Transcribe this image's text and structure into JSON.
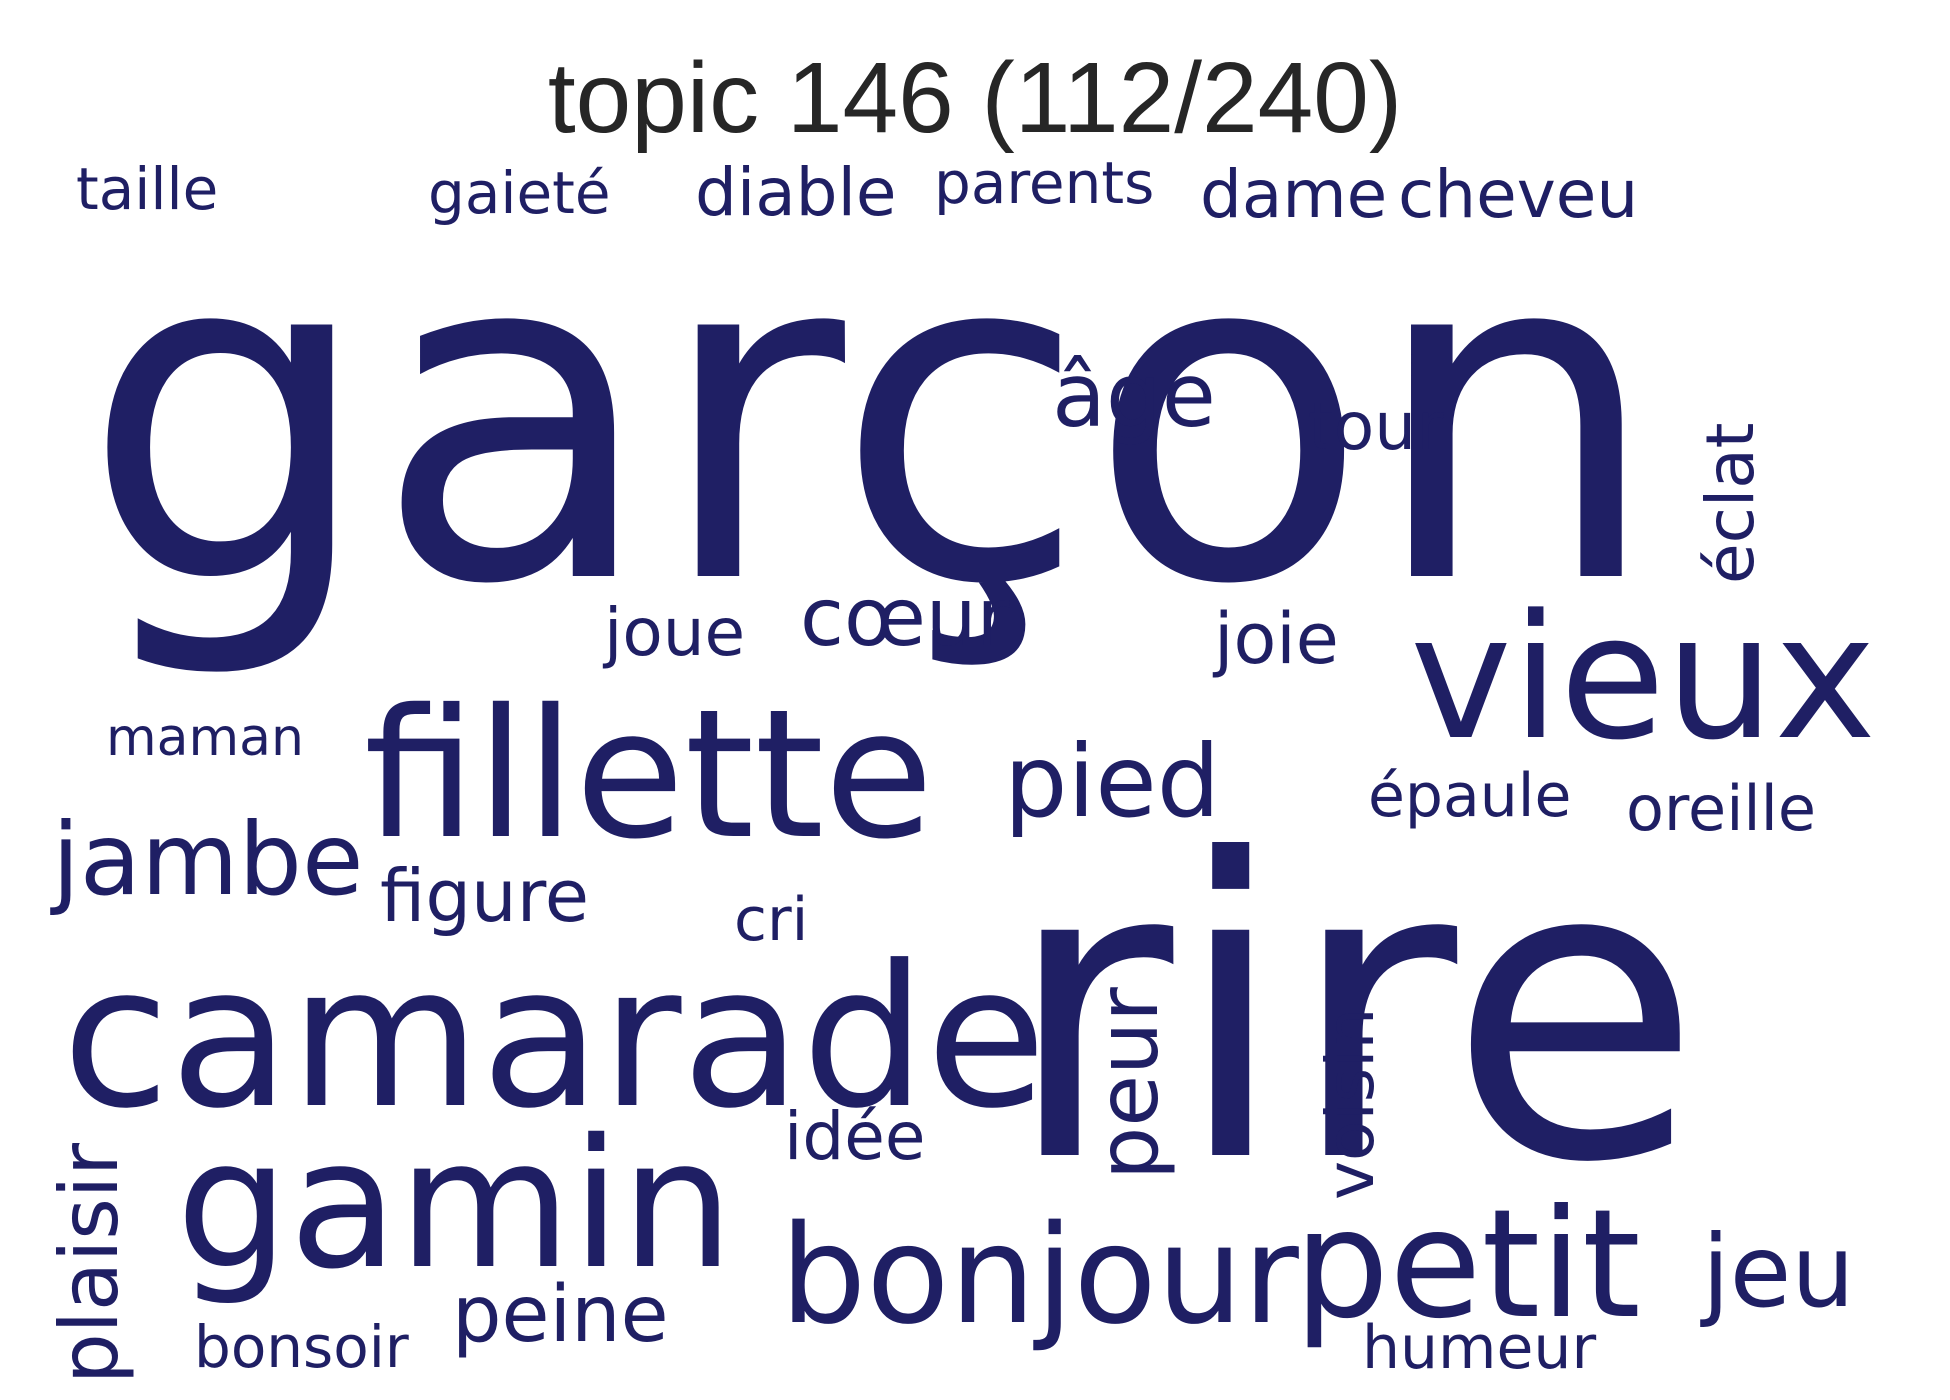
{
  "title": "topic 146 (112/240)",
  "word_color": "#1f1f64",
  "words": {
    "taille": "taille",
    "gaiete": "gaieté",
    "diable": "diable",
    "parents": "parents",
    "dame": "dame",
    "cheveu": "cheveu",
    "garcon": "garçon",
    "age": "âge",
    "tour": "tour",
    "eclat": "éclat",
    "joue": "joue",
    "coeur": "cœur",
    "joie": "joie",
    "vieux": "vieux",
    "maman": "maman",
    "fillette": "fillette",
    "pied": "pied",
    "epaule": "épaule",
    "oreille": "oreille",
    "jambe": "jambe",
    "figure": "figure",
    "cri": "cri",
    "rire": "rire",
    "camarade": "camarade",
    "peur": "peur",
    "voisin": "voisin",
    "idee": "idée",
    "gamin": "gamin",
    "plaisir": "plaisir",
    "bonjour": "bonjour",
    "petit": "petit",
    "jeu": "jeu",
    "peine": "peine",
    "bonsoir": "bonsoir",
    "humeur": "humeur"
  }
}
